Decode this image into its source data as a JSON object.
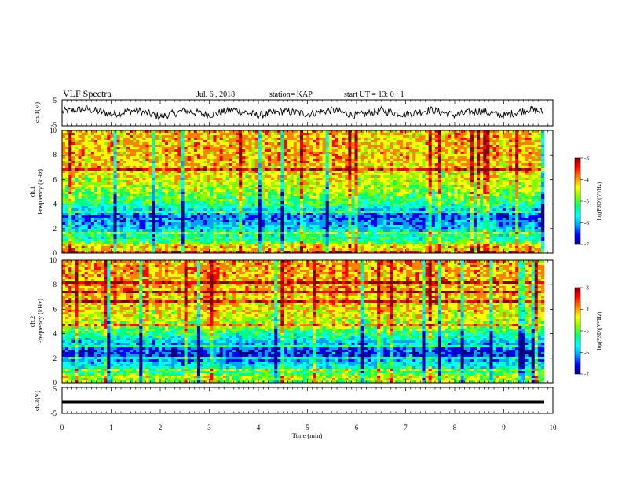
{
  "header": {
    "title": "VLF Spectra",
    "date": "Jul. 6 , 2018",
    "station": "station= KAP",
    "start": "start UT = 13: 0 : 1"
  },
  "chart_data": [
    {
      "type": "line",
      "name": "ch1-waveform",
      "ylabel": "ch.1(V)",
      "ylim": [
        -5,
        5
      ],
      "yticks": [
        "5",
        "-5"
      ],
      "x_unit": "min",
      "x": [
        0,
        0.5,
        1,
        1.5,
        2,
        2.5,
        3,
        3.5,
        4,
        4.5,
        5,
        5.5,
        6,
        6.5,
        7,
        7.5,
        8,
        8.5,
        9,
        9.5,
        9.8
      ],
      "y": [
        0.5,
        1.5,
        -0.5,
        1.0,
        -1.5,
        0.8,
        -0.8,
        1.2,
        -1.0,
        0.6,
        -0.4,
        1.0,
        -1.2,
        0.9,
        -0.6,
        1.1,
        -0.9,
        0.7,
        -1.1,
        1.3,
        0.4
      ]
    },
    {
      "type": "heatmap",
      "name": "ch1-spectrogram",
      "ylabel": "ch.1\nFrequency (kHz)",
      "ylim": [
        0,
        10
      ],
      "yticks": [
        "0",
        "2",
        "4",
        "6",
        "8",
        "10"
      ],
      "colorbar": {
        "label": "log(PSD)(V²/Hz)",
        "min": -7,
        "max": -3,
        "ticks": [
          "-3",
          "-4",
          "-5",
          "-6",
          "-7"
        ]
      },
      "band_profile_khz": [
        [
          0,
          -4.5
        ],
        [
          0.5,
          -4.2
        ],
        [
          1,
          -5.2
        ],
        [
          1.5,
          -5.4
        ],
        [
          2,
          -5.8
        ],
        [
          2.5,
          -6.0
        ],
        [
          3,
          -6.2
        ],
        [
          3.5,
          -5.8
        ],
        [
          4,
          -5.2
        ],
        [
          4.5,
          -5.0
        ],
        [
          5,
          -4.8
        ],
        [
          6,
          -4.5
        ],
        [
          7,
          -4.3
        ],
        [
          8,
          -4.2
        ],
        [
          9,
          -4.2
        ],
        [
          10,
          -4.2
        ]
      ]
    },
    {
      "type": "heatmap",
      "name": "ch2-spectrogram",
      "ylabel": "ch.2\nFrequency (kHz)",
      "ylim": [
        0,
        10
      ],
      "yticks": [
        "0",
        "2",
        "4",
        "6",
        "8",
        "10"
      ],
      "colorbar": {
        "label": "log(PSD)(V²/Hz)",
        "min": -7,
        "max": -3,
        "ticks": [
          "-3",
          "-4",
          "-5",
          "-6",
          "-7"
        ]
      },
      "band_profile_khz": [
        [
          0,
          -4.8
        ],
        [
          0.5,
          -4.6
        ],
        [
          1,
          -5.4
        ],
        [
          1.5,
          -5.6
        ],
        [
          2,
          -6.2
        ],
        [
          2.5,
          -6.4
        ],
        [
          3,
          -6.0
        ],
        [
          3.5,
          -5.6
        ],
        [
          4,
          -5.2
        ],
        [
          4.5,
          -4.8
        ],
        [
          5,
          -4.6
        ],
        [
          6,
          -4.3
        ],
        [
          7,
          -4.2
        ],
        [
          8,
          -4.1
        ],
        [
          9,
          -4.1
        ],
        [
          10,
          -4.1
        ]
      ]
    },
    {
      "type": "line",
      "name": "ch3-waveform",
      "ylabel": "ch.3(V)",
      "ylim": [
        -5,
        5
      ],
      "yticks": [
        "5",
        "-5"
      ],
      "x": [
        0,
        9.8
      ],
      "y": [
        -1,
        -1
      ]
    }
  ],
  "xaxis": {
    "label": "Time (min)",
    "range": [
      0,
      10
    ],
    "ticks": [
      "0",
      "1",
      "2",
      "3",
      "4",
      "5",
      "6",
      "7",
      "8",
      "9",
      "10"
    ]
  },
  "colors": {
    "colormap": [
      "#000080",
      "#0000ff",
      "#00a0ff",
      "#00ffff",
      "#00ff80",
      "#80ff00",
      "#ffff00",
      "#ff8000",
      "#ff0000",
      "#800000"
    ]
  }
}
